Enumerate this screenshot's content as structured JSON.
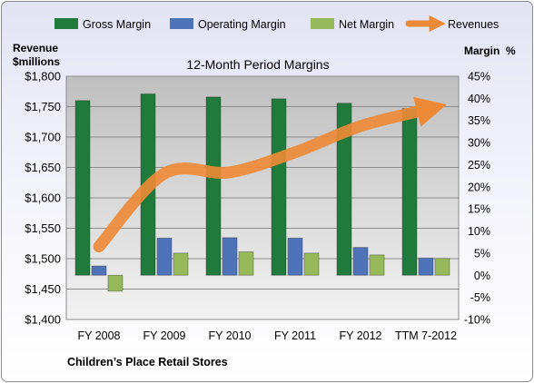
{
  "chart_data": {
    "type": "bar",
    "title": "12-Month Period Margins",
    "footer": "Children’s Place Retail Stores",
    "left_axis": {
      "title_line1": "Revenue",
      "title_line2": "$millions",
      "min": 1400,
      "max": 1800,
      "step": 50,
      "tick_labels": [
        "$1,400",
        "$1,450",
        "$1,500",
        "$1,550",
        "$1,600",
        "$1,650",
        "$1,700",
        "$1,750",
        "$1,800"
      ]
    },
    "right_axis": {
      "title": "Margin  %",
      "min": -10,
      "max": 45,
      "step": 5,
      "tick_labels": [
        "-10%",
        "-5%",
        "0%",
        "5%",
        "10%",
        "15%",
        "20%",
        "25%",
        "30%",
        "35%",
        "40%",
        "45%"
      ]
    },
    "categories": [
      "FY 2008",
      "FY 2009",
      "FY 2010",
      "FY 2011",
      "FY 2012",
      "TTM 7-2012"
    ],
    "series": [
      {
        "name": "Gross Margin",
        "type": "bar",
        "axis": "right",
        "color": "#1f7a3c",
        "values": [
          39.5,
          41,
          40.3,
          39.9,
          38.9,
          37.7
        ]
      },
      {
        "name": "Operating Margin",
        "type": "bar",
        "axis": "right",
        "color": "#4f73b8",
        "values": [
          2.1,
          8.4,
          8.5,
          8.4,
          6.3,
          3.9
        ]
      },
      {
        "name": "Net Margin",
        "type": "bar",
        "axis": "right",
        "color": "#98b85c",
        "values": [
          -3.6,
          5,
          5.3,
          5,
          4.6,
          3.8
        ]
      },
      {
        "name": "Revenues",
        "type": "line",
        "axis": "left",
        "color": "#ed8a37",
        "values": [
          1520,
          1640,
          1642,
          1675,
          1718,
          1745
        ]
      }
    ],
    "grid": true,
    "legend": "top"
  }
}
